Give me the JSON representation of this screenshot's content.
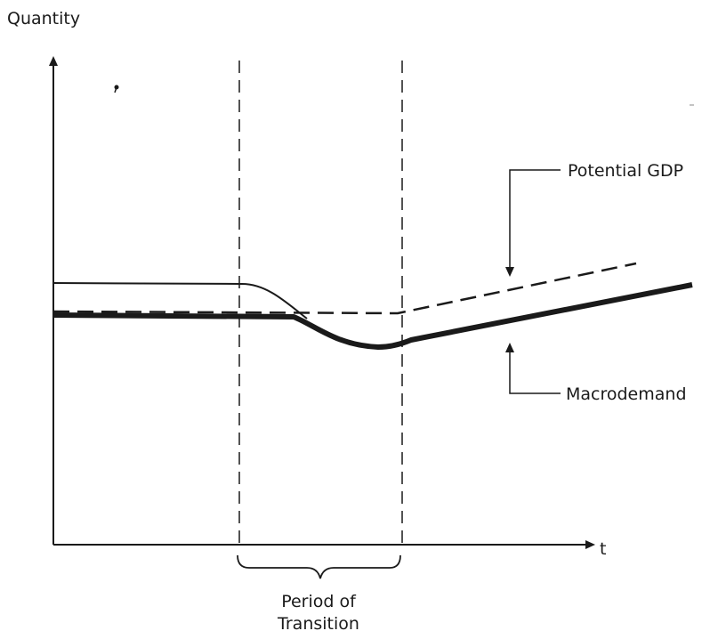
{
  "diagram": {
    "y_axis_label": "Quantity",
    "x_axis_label": "t",
    "series": {
      "potential_gdp": "Potential GDP",
      "macrodemand": "Macrodemand"
    },
    "transition": {
      "line1": "Period of",
      "line2": "Transition"
    }
  }
}
